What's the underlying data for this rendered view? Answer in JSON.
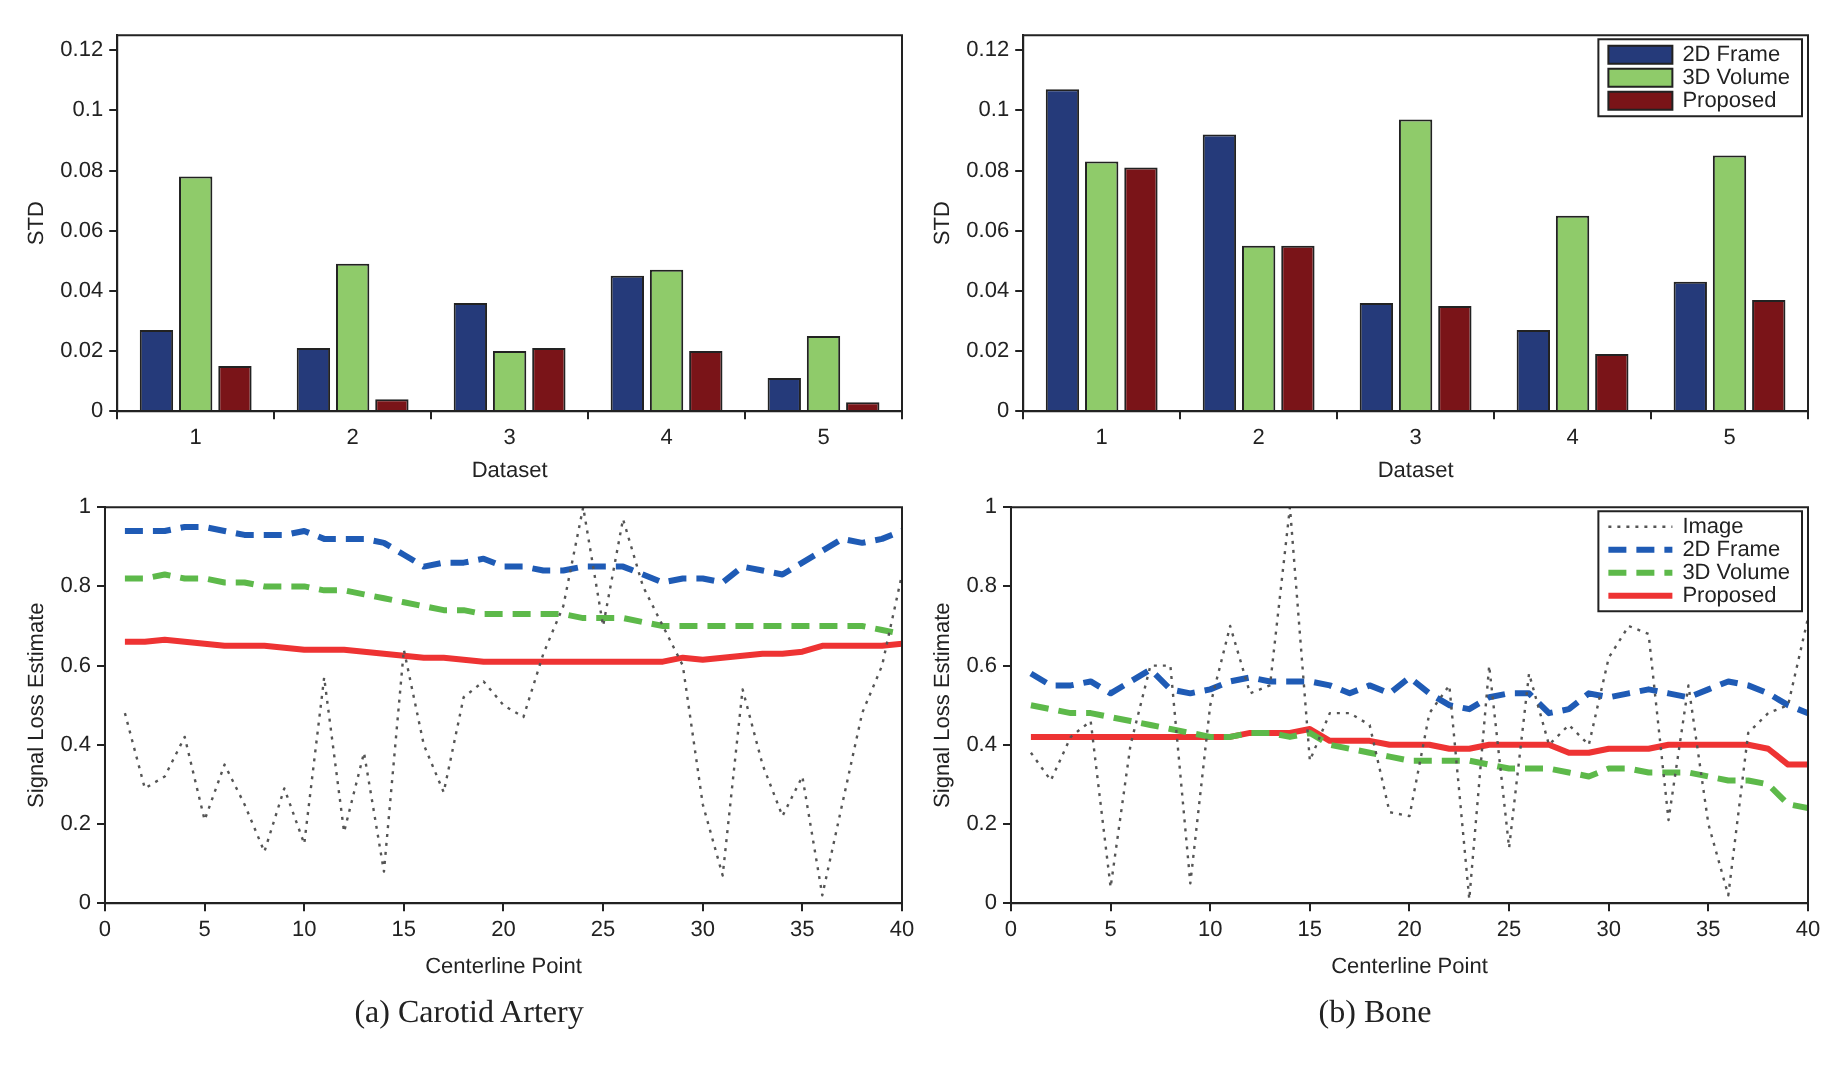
{
  "chart_data": [
    {
      "type": "bar",
      "categories": [
        "1",
        "2",
        "3",
        "4",
        "5"
      ],
      "xlabel": "Dataset",
      "ylabel": "STD",
      "ylim": [
        0,
        0.125
      ],
      "yticks": [
        0,
        0.02,
        0.04,
        0.06,
        0.08,
        0.1,
        0.12
      ],
      "grid": false,
      "legend": false,
      "series": [
        {
          "color": "#253a7a",
          "values": [
            0.027,
            0.021,
            0.036,
            0.045,
            0.011
          ]
        },
        {
          "color": "#8fcb6a",
          "values": [
            0.078,
            0.049,
            0.02,
            0.047,
            0.025
          ]
        },
        {
          "color": "#7a1418",
          "values": [
            0.015,
            0.004,
            0.021,
            0.02,
            0.003
          ]
        }
      ]
    },
    {
      "type": "bar",
      "categories": [
        "1",
        "2",
        "3",
        "4",
        "5"
      ],
      "xlabel": "Dataset",
      "ylabel": "STD",
      "ylim": [
        0,
        0.125
      ],
      "yticks": [
        0,
        0.02,
        0.04,
        0.06,
        0.08,
        0.1,
        0.12
      ],
      "grid": false,
      "legend": "top right",
      "series": [
        {
          "name": "2D Frame",
          "color": "#253a7a",
          "values": [
            0.107,
            0.092,
            0.036,
            0.027,
            0.043
          ]
        },
        {
          "name": "3D Volume",
          "color": "#8fcb6a",
          "values": [
            0.083,
            0.055,
            0.097,
            0.065,
            0.085
          ]
        },
        {
          "name": "Proposed",
          "color": "#7a1418",
          "values": [
            0.081,
            0.055,
            0.035,
            0.019,
            0.037
          ]
        }
      ]
    },
    {
      "type": "line",
      "x": [
        1,
        2,
        3,
        4,
        5,
        6,
        7,
        8,
        9,
        10,
        11,
        12,
        13,
        14,
        15,
        16,
        17,
        18,
        19,
        20,
        21,
        22,
        23,
        24,
        25,
        26,
        27,
        28,
        29,
        30,
        31,
        32,
        33,
        34,
        35,
        36,
        37,
        38,
        39,
        40
      ],
      "xlabel": "Centerline Point",
      "ylabel": "Signal Loss Estimate",
      "xlim": [
        0,
        40
      ],
      "xticks": [
        0,
        5,
        10,
        15,
        20,
        25,
        30,
        35,
        40
      ],
      "ylim": [
        0,
        1
      ],
      "yticks": [
        0,
        0.2,
        0.4,
        0.6,
        0.8,
        1
      ],
      "grid": false,
      "legend": false,
      "marker": "none",
      "annotations": [
        "(a) Carotid Artery"
      ],
      "series": [
        {
          "color": "#555555",
          "line_style": "dotted",
          "values": [
            0.48,
            0.29,
            0.32,
            0.42,
            0.21,
            0.35,
            0.25,
            0.13,
            0.29,
            0.15,
            0.57,
            0.18,
            0.38,
            0.08,
            0.64,
            0.4,
            0.28,
            0.52,
            0.56,
            0.5,
            0.47,
            0.63,
            0.75,
            1.0,
            0.7,
            0.97,
            0.8,
            0.7,
            0.6,
            0.25,
            0.07,
            0.54,
            0.35,
            0.22,
            0.32,
            0.02,
            0.25,
            0.48,
            0.6,
            0.83
          ]
        },
        {
          "color": "#1f5bb5",
          "line_style": "dashed",
          "values": [
            0.94,
            0.94,
            0.94,
            0.95,
            0.95,
            0.94,
            0.93,
            0.93,
            0.93,
            0.94,
            0.92,
            0.92,
            0.92,
            0.91,
            0.88,
            0.85,
            0.86,
            0.86,
            0.87,
            0.85,
            0.85,
            0.84,
            0.84,
            0.85,
            0.85,
            0.85,
            0.83,
            0.81,
            0.82,
            0.82,
            0.81,
            0.85,
            0.84,
            0.83,
            0.86,
            0.89,
            0.92,
            0.91,
            0.92,
            0.94
          ]
        },
        {
          "color": "#5db94a",
          "line_style": "dashed",
          "values": [
            0.82,
            0.82,
            0.83,
            0.82,
            0.82,
            0.81,
            0.81,
            0.8,
            0.8,
            0.8,
            0.79,
            0.79,
            0.78,
            0.77,
            0.76,
            0.75,
            0.74,
            0.74,
            0.73,
            0.73,
            0.73,
            0.73,
            0.73,
            0.72,
            0.72,
            0.72,
            0.71,
            0.7,
            0.7,
            0.7,
            0.7,
            0.7,
            0.7,
            0.7,
            0.7,
            0.7,
            0.7,
            0.7,
            0.69,
            0.68
          ]
        },
        {
          "color": "#ee3333",
          "line_style": "solid",
          "values": [
            0.66,
            0.66,
            0.665,
            0.66,
            0.655,
            0.65,
            0.65,
            0.65,
            0.645,
            0.64,
            0.64,
            0.64,
            0.635,
            0.63,
            0.625,
            0.62,
            0.62,
            0.615,
            0.61,
            0.61,
            0.61,
            0.61,
            0.61,
            0.61,
            0.61,
            0.61,
            0.61,
            0.61,
            0.62,
            0.615,
            0.62,
            0.625,
            0.63,
            0.63,
            0.635,
            0.65,
            0.65,
            0.65,
            0.65,
            0.655
          ]
        }
      ]
    },
    {
      "type": "line",
      "x": [
        1,
        2,
        3,
        4,
        5,
        6,
        7,
        8,
        9,
        10,
        11,
        12,
        13,
        14,
        15,
        16,
        17,
        18,
        19,
        20,
        21,
        22,
        23,
        24,
        25,
        26,
        27,
        28,
        29,
        30,
        31,
        32,
        33,
        34,
        35,
        36,
        37,
        38,
        39,
        40
      ],
      "xlabel": "Centerline Point",
      "ylabel": "Signal Loss Estimate",
      "xlim": [
        0,
        40
      ],
      "xticks": [
        0,
        5,
        10,
        15,
        20,
        25,
        30,
        35,
        40
      ],
      "ylim": [
        0,
        1
      ],
      "yticks": [
        0,
        0.2,
        0.4,
        0.6,
        0.8,
        1
      ],
      "grid": false,
      "legend": "top right",
      "marker": "none",
      "annotations": [
        "(b) Bone"
      ],
      "series": [
        {
          "name": "Image",
          "color": "#555555",
          "line_style": "dotted",
          "values": [
            0.38,
            0.31,
            0.42,
            0.46,
            0.04,
            0.4,
            0.6,
            0.6,
            0.05,
            0.5,
            0.7,
            0.53,
            0.55,
            1.0,
            0.36,
            0.48,
            0.48,
            0.45,
            0.23,
            0.22,
            0.48,
            0.55,
            0.01,
            0.6,
            0.14,
            0.58,
            0.4,
            0.45,
            0.4,
            0.62,
            0.7,
            0.68,
            0.21,
            0.55,
            0.2,
            0.02,
            0.43,
            0.48,
            0.5,
            0.72
          ]
        },
        {
          "name": "2D Frame",
          "color": "#1f5bb5",
          "line_style": "dashed",
          "values": [
            0.58,
            0.55,
            0.55,
            0.56,
            0.53,
            0.56,
            0.59,
            0.54,
            0.53,
            0.54,
            0.56,
            0.57,
            0.56,
            0.56,
            0.56,
            0.55,
            0.53,
            0.55,
            0.53,
            0.57,
            0.53,
            0.5,
            0.49,
            0.52,
            0.53,
            0.53,
            0.48,
            0.49,
            0.53,
            0.52,
            0.53,
            0.54,
            0.53,
            0.52,
            0.54,
            0.56,
            0.55,
            0.53,
            0.5,
            0.48
          ]
        },
        {
          "name": "3D Volume",
          "color": "#5db94a",
          "line_style": "dashed",
          "values": [
            0.5,
            0.49,
            0.48,
            0.48,
            0.47,
            0.46,
            0.45,
            0.44,
            0.43,
            0.42,
            0.42,
            0.43,
            0.43,
            0.42,
            0.43,
            0.4,
            0.39,
            0.38,
            0.37,
            0.36,
            0.36,
            0.36,
            0.36,
            0.35,
            0.34,
            0.34,
            0.34,
            0.33,
            0.32,
            0.34,
            0.34,
            0.33,
            0.33,
            0.33,
            0.32,
            0.31,
            0.31,
            0.3,
            0.25,
            0.24
          ]
        },
        {
          "name": "Proposed",
          "color": "#ee3333",
          "line_style": "solid",
          "values": [
            0.42,
            0.42,
            0.42,
            0.42,
            0.42,
            0.42,
            0.42,
            0.42,
            0.42,
            0.42,
            0.42,
            0.43,
            0.43,
            0.43,
            0.44,
            0.41,
            0.41,
            0.41,
            0.4,
            0.4,
            0.4,
            0.39,
            0.39,
            0.4,
            0.4,
            0.4,
            0.4,
            0.38,
            0.38,
            0.39,
            0.39,
            0.39,
            0.4,
            0.4,
            0.4,
            0.4,
            0.4,
            0.39,
            0.35,
            0.35
          ]
        }
      ]
    }
  ]
}
